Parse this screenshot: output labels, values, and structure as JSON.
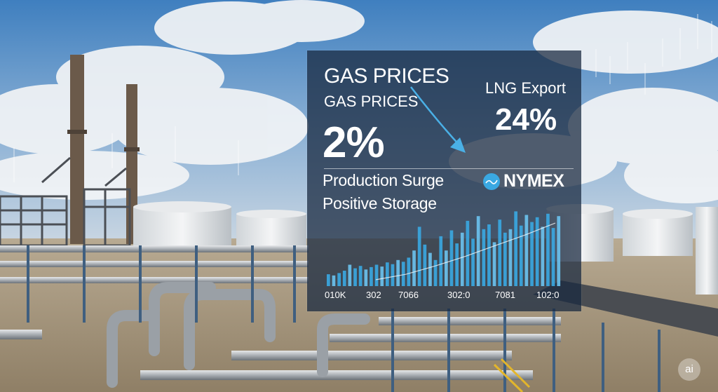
{
  "overlay": {
    "headline_1": "GAS PRICES",
    "headline_2": "GAS PRICES",
    "headline_pct": "2%",
    "lng_label": "LNG Export",
    "lng_value": "24%",
    "production_label": "Production Surge",
    "storage_label": "Positive Storage",
    "exchange_name": "NYMEX"
  },
  "chart_data": {
    "type": "bar",
    "x_tick_labels": [
      "010K",
      "302",
      "7066",
      "302:0",
      "7081",
      "102:0"
    ],
    "values": [
      20,
      18,
      22,
      26,
      36,
      30,
      34,
      28,
      32,
      36,
      33,
      40,
      37,
      44,
      41,
      48,
      60,
      100,
      70,
      56,
      44,
      84,
      60,
      94,
      72,
      90,
      110,
      80,
      118,
      96,
      104,
      74,
      112,
      90,
      96,
      126,
      102,
      120,
      108,
      116,
      100,
      122,
      98,
      118
    ],
    "ylim": [
      0,
      130
    ],
    "trend_line": [
      12,
      22,
      38,
      56,
      76,
      96,
      118
    ]
  },
  "badge": {
    "text": "ai"
  },
  "colors": {
    "bar": "#3aa8e2",
    "bar_light": "#6cc3f0",
    "arrow": "#4ab0e6",
    "panel": "#182840"
  }
}
